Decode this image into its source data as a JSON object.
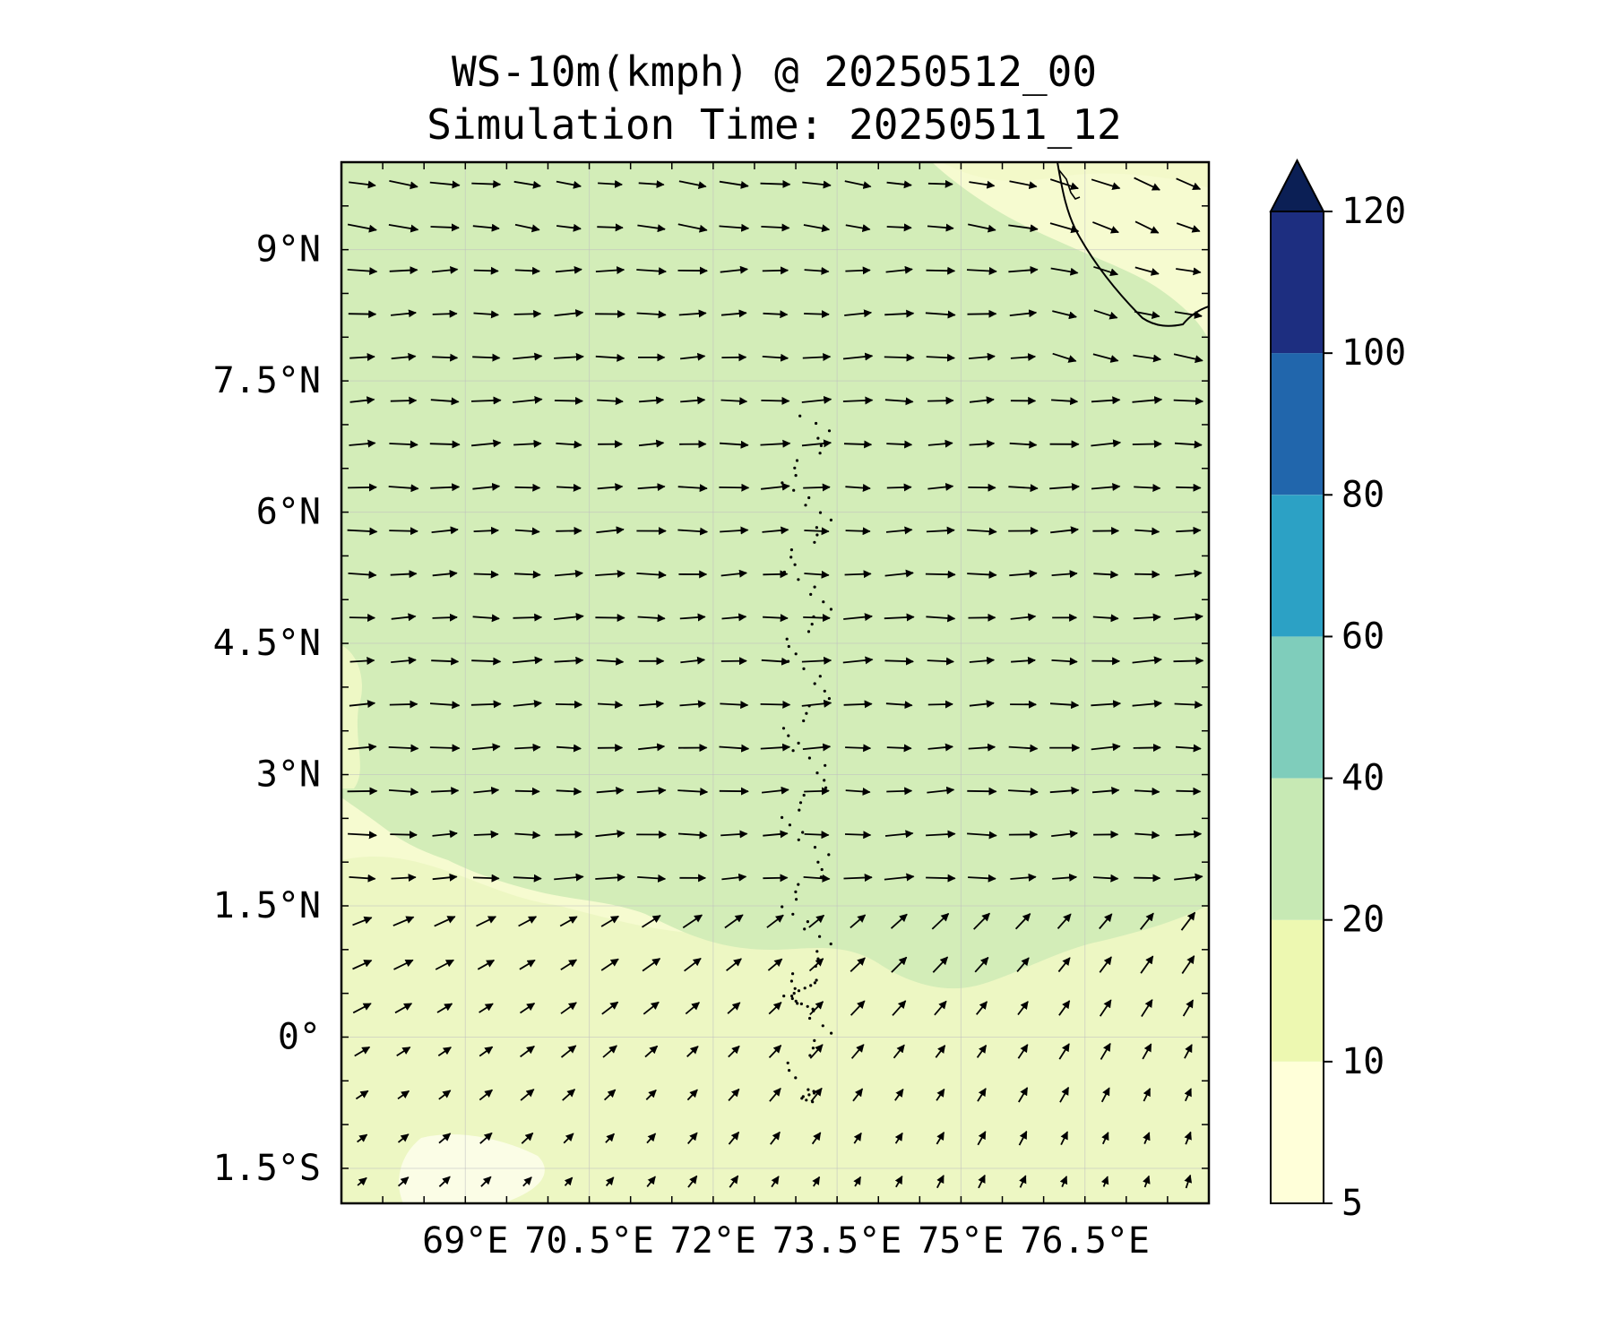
{
  "title": {
    "line1": "WS-10m(kmph) @ 20250512_00",
    "line2": "Simulation Time: 20250511_12"
  },
  "map": {
    "lon_range": [
      67.5,
      78.0
    ],
    "lat_range": [
      -1.9,
      10.0
    ],
    "lon_ticks": [
      {
        "value": 69.0,
        "label": "69°E"
      },
      {
        "value": 70.5,
        "label": "70.5°E"
      },
      {
        "value": 72.0,
        "label": "72°E"
      },
      {
        "value": 73.5,
        "label": "73.5°E"
      },
      {
        "value": 75.0,
        "label": "75°E"
      },
      {
        "value": 76.5,
        "label": "76.5°E"
      }
    ],
    "lat_ticks": [
      {
        "value": 9.0,
        "label": "9°N"
      },
      {
        "value": 7.5,
        "label": "7.5°N"
      },
      {
        "value": 6.0,
        "label": "6°N"
      },
      {
        "value": 4.5,
        "label": "4.5°N"
      },
      {
        "value": 3.0,
        "label": "3°N"
      },
      {
        "value": 1.5,
        "label": "1.5°N"
      },
      {
        "value": 0.0,
        "label": "0°"
      },
      {
        "value": -1.5,
        "label": "1.5°S"
      }
    ],
    "gridlines": true,
    "quiver_rows": 24,
    "quiver_cols": 21
  },
  "colorbar": {
    "levels": [
      5,
      10,
      20,
      40,
      60,
      80,
      100,
      120
    ],
    "labels": [
      "5",
      "10",
      "20",
      "40",
      "60",
      "80",
      "100",
      "120"
    ],
    "colors": [
      "#ffffd9",
      "#edf8b1",
      "#c7e9b4",
      "#7fcdbb",
      "#2ca1c5",
      "#2166ac",
      "#1d2e80"
    ],
    "extend_color": "#0b1f55",
    "extend": "max"
  },
  "fill_colors": {
    "low": "#f6fbd0",
    "mid": "#edf7c3",
    "high": "#d3edb8"
  }
}
